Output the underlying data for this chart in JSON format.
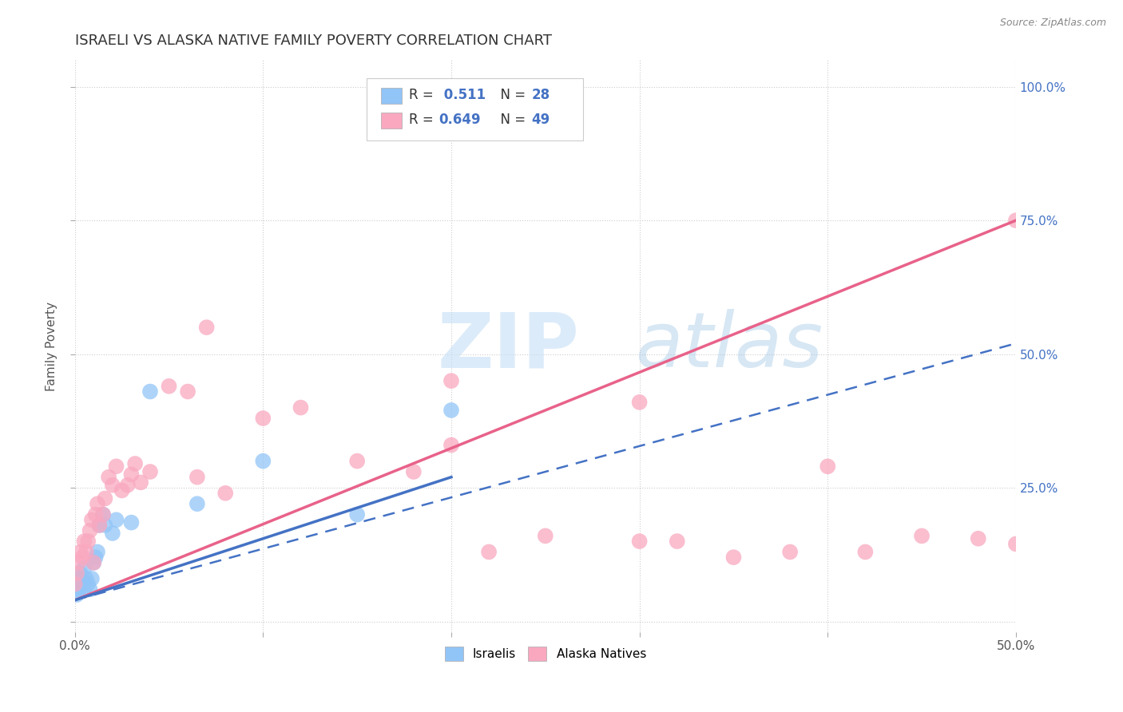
{
  "title": "ISRAELI VS ALASKA NATIVE FAMILY POVERTY CORRELATION CHART",
  "source": "Source: ZipAtlas.com",
  "ylabel": "Family Poverty",
  "xlim": [
    0.0,
    0.5
  ],
  "ylim": [
    -0.02,
    1.05
  ],
  "watermark_zip": "ZIP",
  "watermark_atlas": "atlas",
  "israelis_color": "#92C5F7",
  "alaska_color": "#F9A8C0",
  "trendline_israeli_color": "#4472C4",
  "trendline_alaska_color": "#E8628A",
  "background_color": "#ffffff",
  "grid_color": "#cccccc",
  "israelis_x": [
    0.0,
    0.001,
    0.001,
    0.002,
    0.002,
    0.003,
    0.003,
    0.004,
    0.005,
    0.005,
    0.006,
    0.007,
    0.008,
    0.009,
    0.01,
    0.011,
    0.012,
    0.013,
    0.015,
    0.016,
    0.02,
    0.022,
    0.03,
    0.04,
    0.065,
    0.1,
    0.15,
    0.2
  ],
  "israelis_y": [
    0.06,
    0.05,
    0.07,
    0.06,
    0.08,
    0.07,
    0.09,
    0.08,
    0.1,
    0.06,
    0.08,
    0.07,
    0.06,
    0.08,
    0.11,
    0.12,
    0.13,
    0.18,
    0.2,
    0.18,
    0.165,
    0.19,
    0.185,
    0.43,
    0.22,
    0.3,
    0.2,
    0.395
  ],
  "alaska_x": [
    0.0,
    0.001,
    0.002,
    0.003,
    0.004,
    0.005,
    0.006,
    0.007,
    0.008,
    0.009,
    0.01,
    0.011,
    0.012,
    0.013,
    0.015,
    0.016,
    0.018,
    0.02,
    0.022,
    0.025,
    0.028,
    0.03,
    0.032,
    0.035,
    0.04,
    0.05,
    0.06,
    0.065,
    0.07,
    0.08,
    0.1,
    0.12,
    0.15,
    0.18,
    0.2,
    0.22,
    0.2,
    0.25,
    0.3,
    0.32,
    0.35,
    0.38,
    0.4,
    0.42,
    0.45,
    0.48,
    0.5,
    0.3,
    0.5
  ],
  "alaska_y": [
    0.07,
    0.09,
    0.11,
    0.13,
    0.12,
    0.15,
    0.13,
    0.15,
    0.17,
    0.19,
    0.11,
    0.2,
    0.22,
    0.18,
    0.2,
    0.23,
    0.27,
    0.255,
    0.29,
    0.245,
    0.255,
    0.275,
    0.295,
    0.26,
    0.28,
    0.44,
    0.43,
    0.27,
    0.55,
    0.24,
    0.38,
    0.4,
    0.3,
    0.28,
    0.33,
    0.13,
    0.45,
    0.16,
    0.15,
    0.15,
    0.12,
    0.13,
    0.29,
    0.13,
    0.16,
    0.155,
    0.145,
    0.41,
    0.75
  ],
  "trend_israeli_x0": 0.0,
  "trend_israeli_y0": 0.04,
  "trend_israeli_x1": 0.5,
  "trend_israeli_y1": 0.52,
  "trend_alaska_x0": 0.0,
  "trend_alaska_y0": 0.04,
  "trend_alaska_x1": 0.5,
  "trend_alaska_y1": 0.75
}
